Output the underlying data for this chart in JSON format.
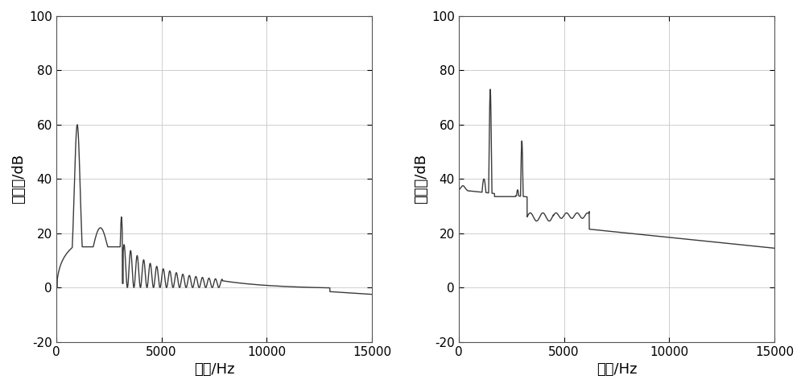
{
  "xlim": [
    0,
    15000
  ],
  "ylim": [
    -20,
    100
  ],
  "yticks": [
    -20,
    0,
    20,
    40,
    60,
    80,
    100
  ],
  "xticks": [
    0,
    5000,
    10000,
    15000
  ],
  "xlabel": "频率/Hz",
  "ylabel": "功率谱/dB",
  "line_color": "#3a3a3a",
  "line_width": 1.0,
  "bg_color": "#ffffff",
  "grid_color": "#c8c8c8",
  "grid_alpha": 1.0,
  "tick_fontsize": 11,
  "label_fontsize": 13
}
